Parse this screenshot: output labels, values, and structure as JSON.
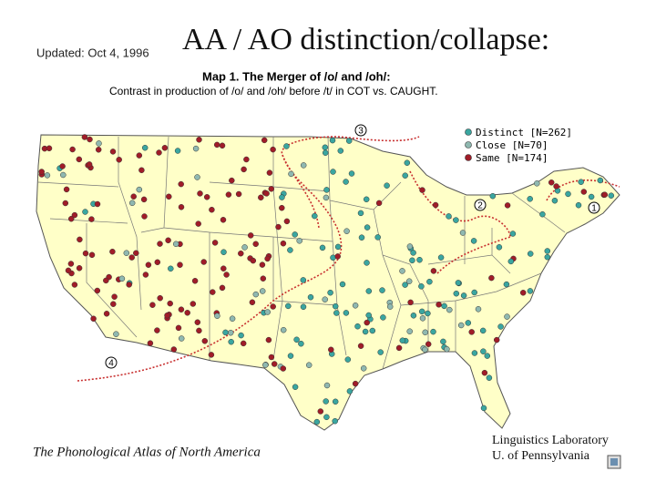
{
  "header": {
    "updated": "Updated: Oct 4, 1996",
    "title": "AA / AO distinction/collapse:"
  },
  "map": {
    "title": "Map 1. The Merger of /o/ and /oh/:",
    "subtitle": "Contrast in production of /o/ and /oh/ before /t/ in COT vs. CAUGHT.",
    "legend": [
      {
        "label": "Distinct [N=262]",
        "color": "#3aa6a0"
      },
      {
        "label": "Close [N=70]",
        "color": "#8fb8b0"
      },
      {
        "label": "Same [N=174]",
        "color": "#a01c28"
      }
    ],
    "region_labels": [
      "1",
      "2",
      "3",
      "4"
    ]
  },
  "footer": {
    "atlas": "The Phonological Atlas of North America",
    "lab_line1": "Linguistics Laboratory",
    "lab_line2": "U. of Pennsylvania"
  }
}
